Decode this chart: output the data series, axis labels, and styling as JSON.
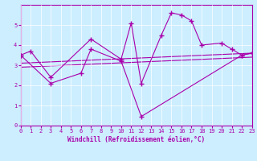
{
  "xlabel": "Windchill (Refroidissement éolien,°C)",
  "xlim": [
    0,
    23
  ],
  "ylim": [
    0,
    6
  ],
  "yticks": [
    0,
    1,
    2,
    3,
    4,
    5
  ],
  "xticks": [
    0,
    1,
    2,
    3,
    4,
    5,
    6,
    7,
    8,
    9,
    10,
    11,
    12,
    13,
    14,
    15,
    16,
    17,
    18,
    19,
    20,
    21,
    22,
    23
  ],
  "background_color": "#cceeff",
  "line_color": "#aa00aa",
  "series": [
    {
      "x": [
        0,
        1,
        3,
        7,
        10,
        11,
        12,
        14,
        15,
        16,
        17,
        18,
        20,
        21,
        22,
        23
      ],
      "y": [
        3.5,
        3.7,
        2.4,
        4.3,
        3.3,
        5.1,
        2.1,
        4.5,
        5.6,
        5.5,
        5.2,
        4.0,
        4.1,
        3.8,
        3.5,
        3.6
      ]
    },
    {
      "x": [
        0,
        3,
        6,
        7,
        10,
        12,
        22,
        23
      ],
      "y": [
        3.5,
        2.1,
        2.6,
        3.8,
        3.2,
        0.45,
        3.5,
        3.6
      ]
    },
    {
      "x": [
        0,
        23
      ],
      "y": [
        2.9,
        3.4
      ]
    },
    {
      "x": [
        0,
        23
      ],
      "y": [
        3.1,
        3.6
      ]
    }
  ]
}
